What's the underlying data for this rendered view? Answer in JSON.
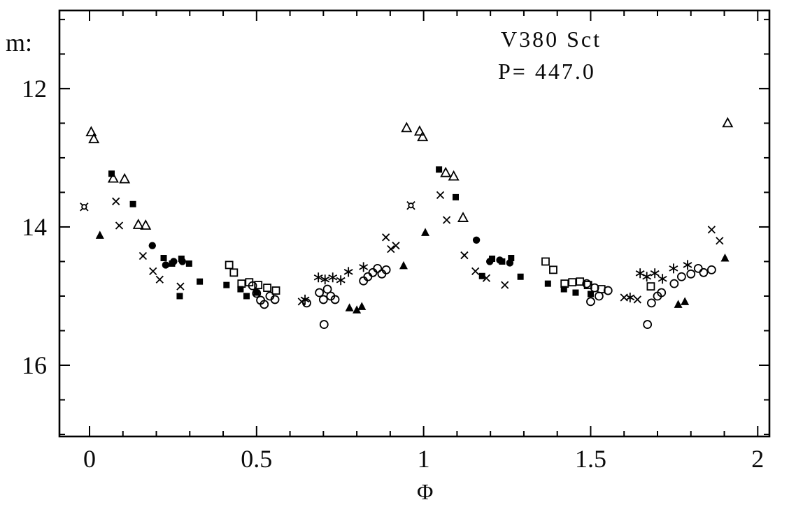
{
  "figure": {
    "y_axis_label": "m:",
    "x_axis_label": "Φ",
    "title_line1": "V380 Sct",
    "title_line2": "P= 447.0"
  },
  "colors": {
    "foreground": "#000000",
    "background": "#ffffff"
  },
  "chart_data": {
    "type": "scatter",
    "title": "V380 Sct",
    "subtitle": "P= 447.0",
    "xlabel": "Φ",
    "ylabel": "m",
    "y_axis_inverted": true,
    "xlim": [
      -0.09,
      2.035
    ],
    "ylim_top_to_bottom": [
      10.87,
      17.03
    ],
    "x_major_ticks": [
      0,
      0.5,
      1,
      1.5,
      2
    ],
    "x_major_labels": [
      "0",
      "0.5",
      "1",
      "1.5",
      "2"
    ],
    "x_minor_step": 0.1,
    "y_major_ticks": [
      12,
      14,
      16
    ],
    "y_major_labels": [
      "12",
      "14",
      "16"
    ],
    "y_minor_step": 0.5,
    "grid": false,
    "legend_position": "none",
    "series": [
      {
        "name": "open-triangle",
        "marker": "open-triangle",
        "points": [
          [
            0.005,
            12.63
          ],
          [
            0.013,
            12.73
          ],
          [
            0.071,
            13.3
          ],
          [
            0.105,
            13.31
          ],
          [
            0.146,
            13.97
          ],
          [
            0.168,
            13.98
          ],
          [
            0.949,
            12.57
          ],
          [
            0.988,
            12.62
          ],
          [
            0.997,
            12.7
          ],
          [
            1.066,
            13.22
          ],
          [
            1.09,
            13.27
          ],
          [
            1.118,
            13.87
          ],
          [
            1.91,
            12.5
          ]
        ]
      },
      {
        "name": "filled-square",
        "marker": "filled-square",
        "points": [
          [
            0.066,
            13.23
          ],
          [
            0.13,
            13.67
          ],
          [
            0.222,
            14.45
          ],
          [
            0.247,
            14.53
          ],
          [
            0.275,
            14.46
          ],
          [
            0.298,
            14.53
          ],
          [
            0.27,
            15.0
          ],
          [
            0.33,
            14.79
          ],
          [
            0.41,
            14.84
          ],
          [
            0.452,
            14.9
          ],
          [
            0.47,
            15.0
          ],
          [
            0.5,
            14.95
          ],
          [
            1.046,
            13.17
          ],
          [
            1.096,
            13.57
          ],
          [
            1.175,
            14.71
          ],
          [
            1.205,
            14.46
          ],
          [
            1.235,
            14.5
          ],
          [
            1.262,
            14.45
          ],
          [
            1.29,
            14.72
          ],
          [
            1.372,
            14.82
          ],
          [
            1.42,
            14.9
          ],
          [
            1.455,
            14.95
          ],
          [
            1.5,
            14.97
          ]
        ]
      },
      {
        "name": "cross",
        "marker": "cross",
        "points": [
          [
            0.079,
            13.63
          ],
          [
            0.089,
            13.98
          ],
          [
            0.16,
            14.42
          ],
          [
            0.19,
            14.64
          ],
          [
            0.21,
            14.76
          ],
          [
            0.272,
            14.86
          ],
          [
            0.635,
            15.08
          ],
          [
            0.887,
            14.15
          ],
          [
            0.902,
            14.32
          ],
          [
            0.917,
            14.27
          ],
          [
            1.05,
            13.54
          ],
          [
            1.069,
            13.9
          ],
          [
            1.122,
            14.41
          ],
          [
            1.155,
            14.64
          ],
          [
            1.188,
            14.74
          ],
          [
            1.243,
            14.84
          ],
          [
            1.6,
            15.02
          ],
          [
            1.64,
            15.05
          ],
          [
            1.862,
            14.04
          ],
          [
            1.886,
            14.2
          ]
        ]
      },
      {
        "name": "asterisk",
        "marker": "asterisk",
        "points": [
          [
            0.645,
            15.05
          ],
          [
            0.685,
            14.73
          ],
          [
            0.705,
            14.76
          ],
          [
            0.728,
            14.73
          ],
          [
            0.752,
            14.77
          ],
          [
            0.775,
            14.65
          ],
          [
            0.82,
            14.58
          ],
          [
            1.618,
            15.02
          ],
          [
            1.648,
            14.67
          ],
          [
            1.668,
            14.72
          ],
          [
            1.692,
            14.67
          ],
          [
            1.715,
            14.75
          ],
          [
            1.748,
            14.6
          ],
          [
            1.79,
            14.55
          ]
        ]
      },
      {
        "name": "open-circle",
        "marker": "open-circle",
        "points": [
          [
            0.488,
            14.85
          ],
          [
            0.5,
            14.96
          ],
          [
            0.512,
            15.06
          ],
          [
            0.523,
            15.12
          ],
          [
            0.54,
            15.0
          ],
          [
            0.555,
            15.05
          ],
          [
            0.65,
            15.1
          ],
          [
            0.688,
            14.95
          ],
          [
            0.7,
            15.05
          ],
          [
            0.702,
            15.41
          ],
          [
            0.712,
            14.9
          ],
          [
            0.722,
            15.0
          ],
          [
            0.735,
            15.05
          ],
          [
            0.82,
            14.78
          ],
          [
            0.833,
            14.72
          ],
          [
            0.848,
            14.66
          ],
          [
            0.862,
            14.6
          ],
          [
            0.875,
            14.68
          ],
          [
            0.888,
            14.62
          ],
          [
            1.488,
            14.82
          ],
          [
            1.5,
            15.08
          ],
          [
            1.512,
            14.88
          ],
          [
            1.525,
            15.0
          ],
          [
            1.552,
            14.92
          ],
          [
            1.67,
            15.41
          ],
          [
            1.682,
            15.1
          ],
          [
            1.7,
            15.0
          ],
          [
            1.712,
            14.95
          ],
          [
            1.75,
            14.82
          ],
          [
            1.772,
            14.72
          ],
          [
            1.8,
            14.68
          ],
          [
            1.822,
            14.6
          ],
          [
            1.838,
            14.66
          ],
          [
            1.862,
            14.62
          ]
        ]
      },
      {
        "name": "filled-circle",
        "marker": "filled-circle",
        "points": [
          [
            0.188,
            14.27
          ],
          [
            0.228,
            14.55
          ],
          [
            0.252,
            14.5
          ],
          [
            0.278,
            14.5
          ],
          [
            1.158,
            14.19
          ],
          [
            1.198,
            14.5
          ],
          [
            1.228,
            14.48
          ],
          [
            1.258,
            14.52
          ]
        ]
      },
      {
        "name": "open-square",
        "marker": "open-square",
        "points": [
          [
            0.418,
            14.55
          ],
          [
            0.432,
            14.66
          ],
          [
            0.455,
            14.82
          ],
          [
            0.478,
            14.8
          ],
          [
            0.505,
            14.84
          ],
          [
            0.532,
            14.88
          ],
          [
            0.558,
            14.92
          ],
          [
            1.365,
            14.5
          ],
          [
            1.388,
            14.62
          ],
          [
            1.422,
            14.82
          ],
          [
            1.445,
            14.8
          ],
          [
            1.468,
            14.79
          ],
          [
            1.492,
            14.84
          ],
          [
            1.532,
            14.9
          ],
          [
            1.68,
            14.86
          ]
        ]
      },
      {
        "name": "filled-triangle",
        "marker": "filled-triangle",
        "points": [
          [
            0.031,
            14.12
          ],
          [
            0.778,
            15.17
          ],
          [
            0.8,
            15.2
          ],
          [
            0.815,
            15.15
          ],
          [
            0.94,
            14.56
          ],
          [
            1.005,
            14.08
          ],
          [
            1.762,
            15.12
          ],
          [
            1.782,
            15.08
          ],
          [
            1.902,
            14.45
          ]
        ]
      },
      {
        "name": "open-star",
        "marker": "open-star",
        "points": [
          [
            -0.016,
            13.71
          ],
          [
            0.962,
            13.69
          ]
        ]
      }
    ]
  }
}
